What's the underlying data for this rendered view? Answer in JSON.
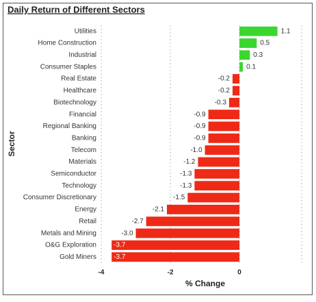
{
  "chart_data": {
    "type": "barh",
    "title": "Daily Return of Different Sectors",
    "x_label": "% Change",
    "y_label": "Sector",
    "categories": [
      "Utilities",
      "Home Construction",
      "Industrial",
      "Consumer Staples",
      "Real Estate",
      "Healthcare",
      "Biotechnology",
      "Financial",
      "Regional Banking",
      "Banking",
      "Telecom",
      "Materials",
      "Semiconductor",
      "Technology",
      "Consumer Discretionary",
      "Energy",
      "Retail",
      "Metals and Mining",
      "O&G Exploration",
      "Gold Miners"
    ],
    "values": [
      1.1,
      0.5,
      0.3,
      0.1,
      -0.2,
      -0.2,
      -0.3,
      -0.9,
      -0.9,
      -0.9,
      -1.0,
      -1.2,
      -1.3,
      -1.3,
      -1.5,
      -2.1,
      -2.7,
      -3.0,
      -3.7,
      -3.7
    ],
    "value_labels": [
      "1.1",
      "0.5",
      "0.3",
      "0.1",
      "-0.2",
      "-0.2",
      "-0.3",
      "-0.9",
      "-0.9",
      "-0.9",
      "-1.0",
      "-1.2",
      "-1.3",
      "-1.3",
      "-1.5",
      "-2.1",
      "-2.7",
      "-3.0",
      "-3.7",
      "-3.7"
    ],
    "positive_color": "#3bd62f",
    "negative_color": "#ee2a17",
    "xlim": [
      -4.1,
      1.8
    ],
    "xticks": [
      -4,
      -2,
      0
    ],
    "grid": true
  }
}
